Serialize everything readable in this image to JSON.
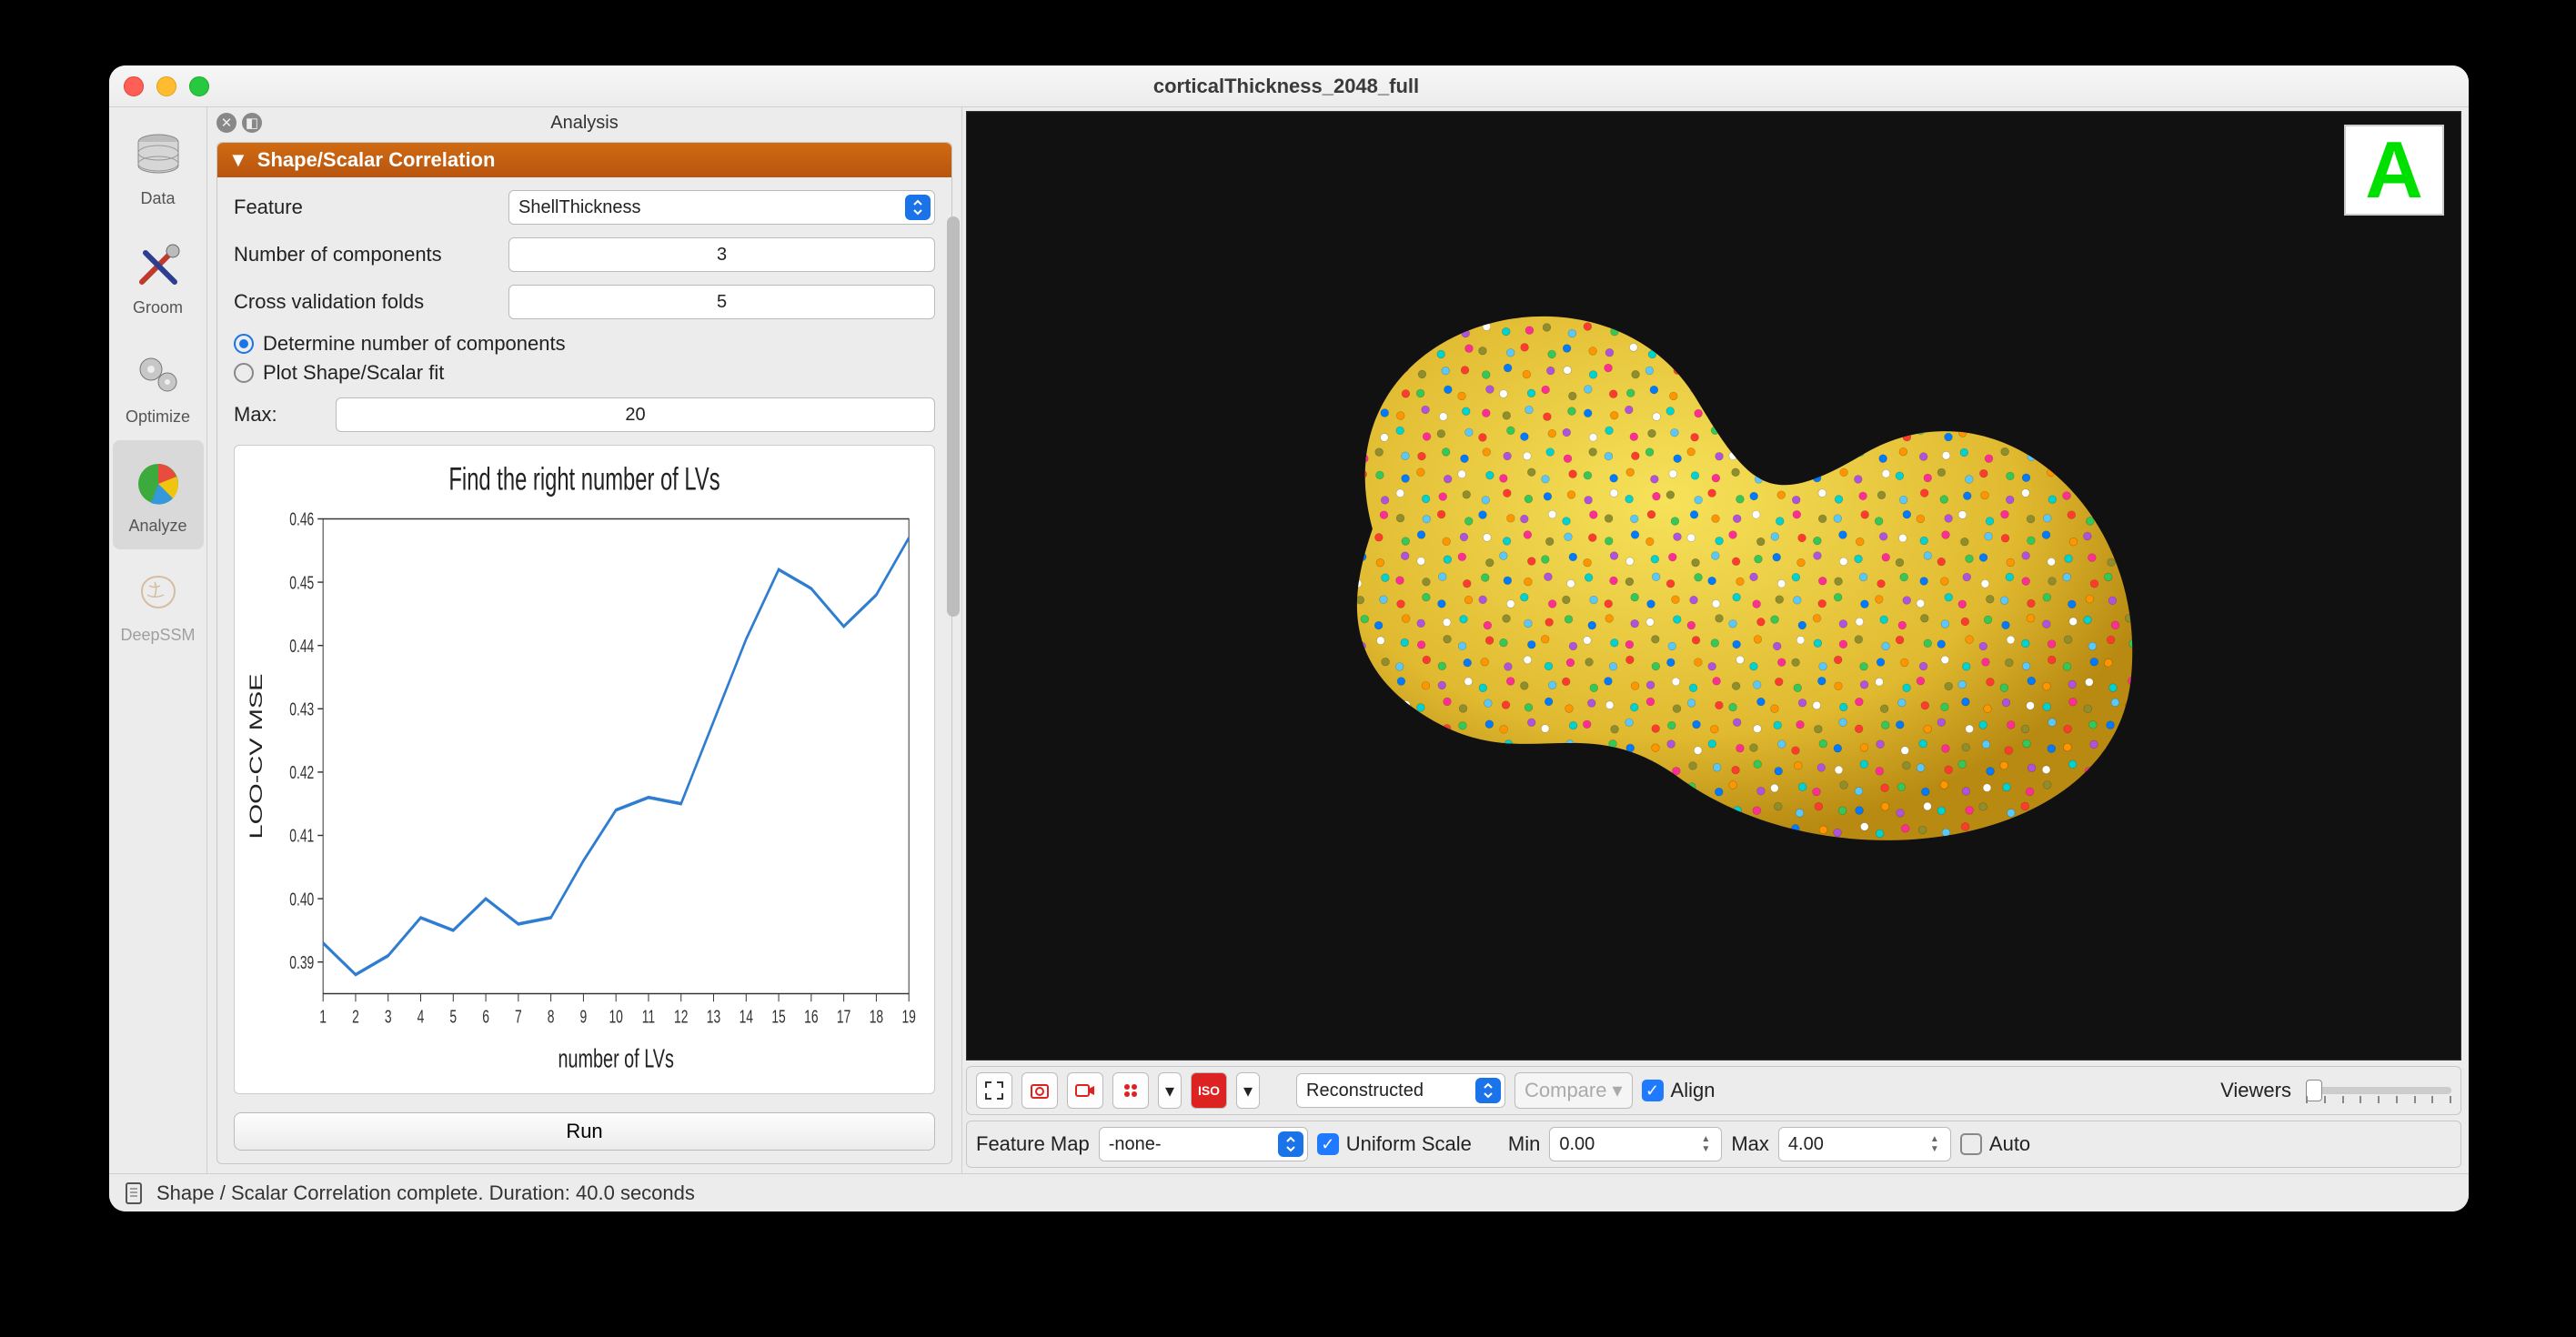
{
  "window": {
    "title": "corticalThickness_2048_full"
  },
  "sidebar": {
    "items": [
      {
        "label": "Data"
      },
      {
        "label": "Groom"
      },
      {
        "label": "Optimize"
      },
      {
        "label": "Analyze"
      },
      {
        "label": "DeepSSM"
      }
    ],
    "active_index": 3
  },
  "panel": {
    "header": "Analysis",
    "title": "Shape/Scalar Correlation",
    "feature_label": "Feature",
    "feature_value": "ShellThickness",
    "ncomp_label": "Number of components",
    "ncomp_value": "3",
    "cv_label": "Cross validation folds",
    "cv_value": "5",
    "radio_determine": "Determine number of components",
    "radio_plot": "Plot Shape/Scalar fit",
    "radio_checked": 0,
    "max_label": "Max:",
    "max_value": "20",
    "run_label": "Run"
  },
  "chart": {
    "title": "Find the right number of LVs",
    "xlabel": "number of LVs",
    "ylabel": "LOO-CV MSE",
    "title_fontsize": 24,
    "label_fontsize": 20,
    "tick_fontsize": 14,
    "line_color": "#2f7dd1",
    "axis_color": "#333333",
    "bg_color": "#ffffff",
    "xlim": [
      1,
      19
    ],
    "ylim": [
      0.385,
      0.46
    ],
    "xticks": [
      1,
      2,
      3,
      4,
      5,
      6,
      7,
      8,
      9,
      10,
      11,
      12,
      13,
      14,
      15,
      16,
      17,
      18,
      19
    ],
    "yticks": [
      0.39,
      0.4,
      0.41,
      0.42,
      0.43,
      0.44,
      0.45,
      0.46
    ],
    "x": [
      1,
      2,
      3,
      4,
      5,
      6,
      7,
      8,
      9,
      10,
      11,
      12,
      13,
      14,
      15,
      16,
      17,
      18,
      19
    ],
    "y": [
      0.393,
      0.388,
      0.391,
      0.397,
      0.395,
      0.4,
      0.396,
      0.397,
      0.406,
      0.414,
      0.416,
      0.415,
      0.428,
      0.441,
      0.452,
      0.449,
      0.443,
      0.448,
      0.457
    ]
  },
  "viewport": {
    "badge": "A",
    "blob_color_light": "#f6e25a",
    "blob_color_dark": "#b88a12",
    "bg": "#111111",
    "dot_colors": [
      "#ff3b30",
      "#34c759",
      "#007aff",
      "#ff9500",
      "#af52de",
      "#ffffff",
      "#00d1d1",
      "#ff2d95",
      "#8e8e2e",
      "#5ac8fa"
    ]
  },
  "toolbar": {
    "reconstructed_label": "Reconstructed",
    "compare_label": "Compare",
    "align_label": "Align",
    "align_checked": true,
    "viewers_label": "Viewers",
    "featuremap_label": "Feature Map",
    "featuremap_value": "-none-",
    "uniform_label": "Uniform Scale",
    "uniform_checked": true,
    "min_label": "Min",
    "min_value": "0.00",
    "max_label": "Max",
    "max_value": "4.00",
    "auto_label": "Auto",
    "auto_checked": false
  },
  "status": {
    "text": "Shape / Scalar Correlation complete.  Duration: 40.0 seconds"
  }
}
